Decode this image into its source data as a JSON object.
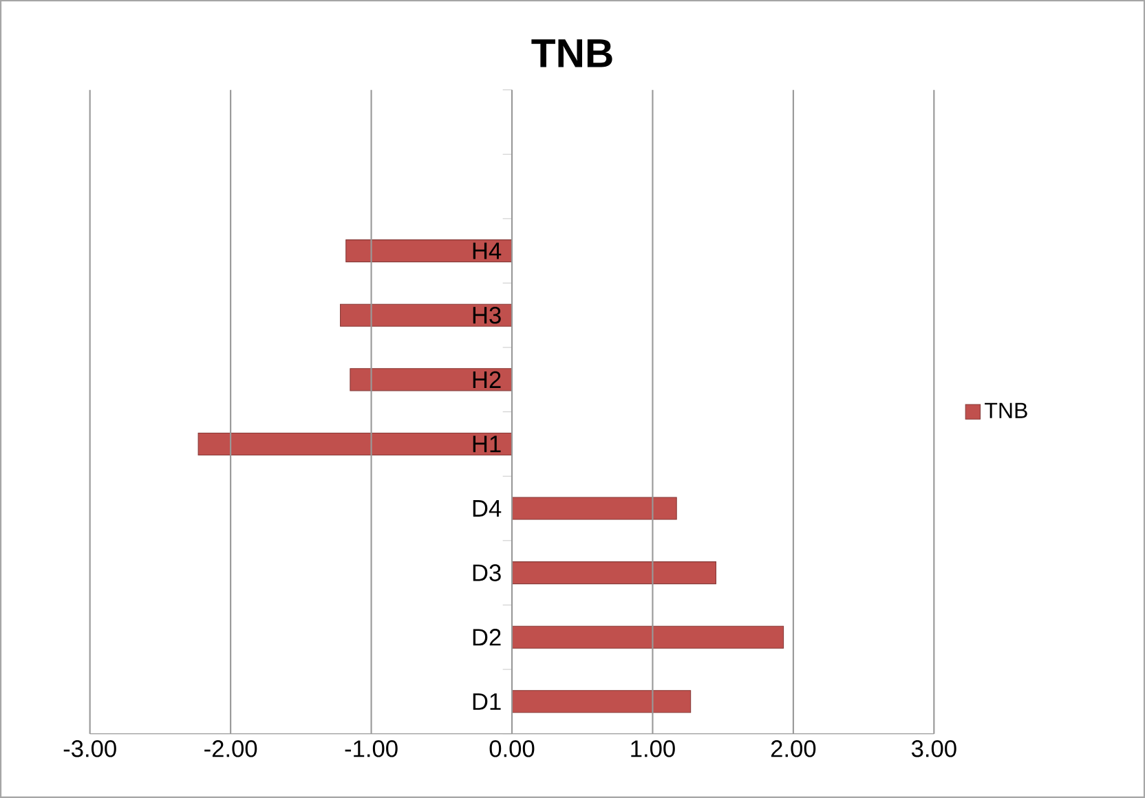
{
  "chart_data": {
    "type": "bar",
    "orientation": "horizontal",
    "title": "TNB",
    "categories": [
      null,
      null,
      "H4",
      "H3",
      "H2",
      "H1",
      "D4",
      "D3",
      "D2",
      "D1"
    ],
    "series": [
      {
        "name": "TNB",
        "color": "#c0504d",
        "values": [
          null,
          null,
          -1.18,
          -1.22,
          -1.15,
          -2.23,
          1.17,
          1.45,
          1.93,
          1.27
        ]
      }
    ],
    "xlim": [
      -3,
      3
    ],
    "xticks": [
      {
        "value": -3,
        "label": "-3.00"
      },
      {
        "value": -2,
        "label": "-2.00"
      },
      {
        "value": -1,
        "label": "-1.00"
      },
      {
        "value": 0,
        "label": "0.00"
      },
      {
        "value": 1,
        "label": "1.00"
      },
      {
        "value": 2,
        "label": "2.00"
      },
      {
        "value": 3,
        "label": "3.00"
      }
    ],
    "grid": "x",
    "legend": "right"
  }
}
